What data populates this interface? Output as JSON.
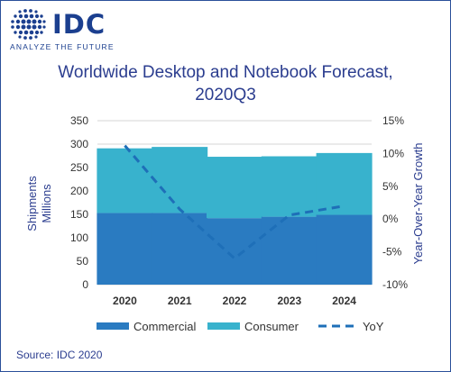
{
  "logo": {
    "brand": "IDC",
    "tagline": "ANALYZE THE FUTURE"
  },
  "chart_data": {
    "type": "bar",
    "title_line1": "Worldwide Desktop and Notebook Forecast,",
    "title_line2": "2020Q3",
    "categories": [
      "2020",
      "2021",
      "2022",
      "2023",
      "2024"
    ],
    "series": [
      {
        "name": "Commercial",
        "values": [
          153,
          153,
          142,
          145,
          149
        ],
        "color": "#2a7bc1"
      },
      {
        "name": "Consumer",
        "values": [
          138,
          141,
          131,
          129,
          132
        ],
        "color": "#38b2cd"
      },
      {
        "name": "YoY",
        "values": [
          11.2,
          1.5,
          -6.0,
          0.6,
          2.0
        ],
        "color": "#1e6fb8",
        "style": "dashed line",
        "axis": "right"
      }
    ],
    "y_left": {
      "label_line1": "Shipments",
      "label_line2": "Millions",
      "ylim": [
        0,
        350
      ],
      "ticks": [
        "0",
        "50",
        "100",
        "150",
        "200",
        "250",
        "300",
        "350"
      ]
    },
    "y_right": {
      "label": "Year-Over-Year Growth",
      "ylim": [
        -10,
        15
      ],
      "ticks": [
        "-10%",
        "-5%",
        "0%",
        "5%",
        "10%",
        "15%"
      ]
    },
    "stacked": true,
    "grid": "horizontal",
    "legend_placement": "bottom"
  },
  "source": "Source: IDC 2020"
}
